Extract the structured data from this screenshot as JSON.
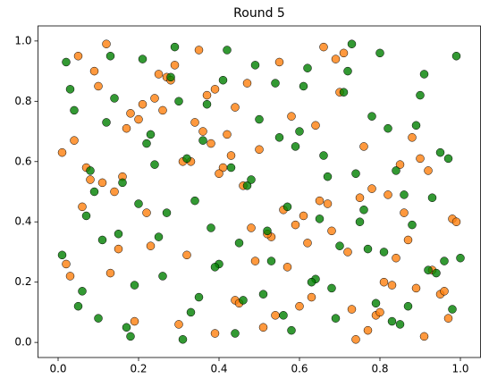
{
  "chart_data": {
    "type": "scatter",
    "title": "Round 5",
    "xlim": [
      -0.05,
      1.05
    ],
    "ylim": [
      -0.05,
      1.05
    ],
    "xticks": [
      {
        "value": 0,
        "label": "0.0"
      },
      0.2,
      0.4,
      0.6,
      0.8,
      {
        "value": 1,
        "label": "1.0"
      }
    ],
    "yticks": [
      {
        "value": 0,
        "label": "0.0"
      },
      0.2,
      0.4,
      0.6,
      0.8,
      {
        "value": 1,
        "label": "1.0"
      }
    ],
    "series": [
      {
        "color": "#ff7f0e",
        "x": [
          0.5,
          0.27,
          0.83,
          0.06,
          0.64,
          0.39,
          0.92,
          0.15,
          0.71,
          0.44,
          0.98,
          0.21,
          0.57,
          0.33,
          0.79,
          0.1,
          0.68,
          0.46,
          0.88,
          0.03,
          0.55,
          0.3,
          0.75,
          0.18,
          0.62,
          0.41,
          0.95,
          0.24,
          0.86,
          0.12,
          0.49,
          0.36,
          0.73,
          0.08,
          0.59,
          0.28,
          0.91,
          0.43,
          0.67,
          0.2,
          0.81,
          0.05,
          0.53,
          0.38,
          0.97,
          0.14,
          0.7,
          0.32,
          0.85,
          0.45,
          0.26,
          0.61,
          0.09,
          0.77,
          0.4,
          0.93,
          0.17,
          0.52,
          0.35,
          0.89,
          0.01,
          0.65,
          0.47,
          0.8,
          0.23,
          0.58,
          0.11,
          0.74,
          0.42,
          0.99,
          0.29,
          0.63,
          0.07,
          0.84,
          0.37,
          0.56,
          0.19,
          0.9,
          0.48,
          0.69,
          0.13,
          0.78,
          0.34,
          0.6,
          0.04,
          0.87,
          0.25,
          0.51,
          0.16,
          0.72,
          0.44,
          0.96,
          0.31,
          0.66,
          0.02,
          0.82,
          0.39,
          0.54,
          0.22,
          0.76
        ],
        "values": [
          0.64,
          0.88,
          0.19,
          0.45,
          0.72,
          0.03,
          0.57,
          0.31,
          0.96,
          0.14,
          0.41,
          0.79,
          0.25,
          0.6,
          0.09,
          0.85,
          0.37,
          0.52,
          0.68,
          0.22,
          0.93,
          0.06,
          0.48,
          0.76,
          0.33,
          0.58,
          0.16,
          0.81,
          0.43,
          0.99,
          0.27,
          0.7,
          0.11,
          0.54,
          0.39,
          0.87,
          0.02,
          0.62,
          0.46,
          0.74,
          0.2,
          0.95,
          0.35,
          0.66,
          0.08,
          0.5,
          0.83,
          0.29,
          0.59,
          0.13,
          0.77,
          0.42,
          0.9,
          0.04,
          0.56,
          0.24,
          0.71,
          0.36,
          0.97,
          0.18,
          0.63,
          0.47,
          0.86,
          0.1,
          0.32,
          0.75,
          0.53,
          0.01,
          0.69,
          0.4,
          0.92,
          0.15,
          0.58,
          0.28,
          0.82,
          0.44,
          0.07,
          0.61,
          0.38,
          0.94,
          0.23,
          0.51,
          0.73,
          0.12,
          0.67,
          0.34,
          0.89,
          0.05,
          0.55,
          0.3,
          0.78,
          0.17,
          0.6,
          0.98,
          0.26,
          0.49,
          0.84,
          0.09,
          0.43,
          0.65
        ]
      },
      {
        "color": "#008000",
        "x": [
          0.02,
          0.05,
          0.08,
          0.11,
          0.14,
          0.17,
          0.2,
          0.23,
          0.26,
          0.29,
          0.32,
          0.35,
          0.38,
          0.41,
          0.44,
          0.47,
          0.5,
          0.53,
          0.56,
          0.59,
          0.62,
          0.65,
          0.68,
          0.71,
          0.74,
          0.77,
          0.8,
          0.83,
          0.86,
          0.89,
          0.92,
          0.95,
          0.98,
          0.01,
          0.04,
          0.07,
          0.1,
          0.13,
          0.16,
          0.19,
          0.22,
          0.25,
          0.28,
          0.31,
          0.34,
          0.37,
          0.4,
          0.43,
          0.46,
          0.49,
          0.52,
          0.55,
          0.58,
          0.61,
          0.64,
          0.67,
          0.7,
          0.73,
          0.76,
          0.79,
          0.82,
          0.85,
          0.88,
          0.91,
          0.94,
          0.97,
          1.0,
          0.03,
          0.06,
          0.09,
          0.12,
          0.15,
          0.18,
          0.21,
          0.24,
          0.27,
          0.3,
          0.33,
          0.36,
          0.39,
          0.42,
          0.45,
          0.48,
          0.51,
          0.54,
          0.57,
          0.6,
          0.63,
          0.66,
          0.69,
          0.72,
          0.75,
          0.78,
          0.81,
          0.84,
          0.87,
          0.9,
          0.93,
          0.96,
          0.99
        ],
        "values": [
          0.93,
          0.12,
          0.57,
          0.34,
          0.81,
          0.05,
          0.46,
          0.69,
          0.22,
          0.98,
          0.61,
          0.15,
          0.38,
          0.87,
          0.03,
          0.52,
          0.74,
          0.27,
          0.09,
          0.65,
          0.91,
          0.41,
          0.18,
          0.83,
          0.56,
          0.31,
          0.96,
          0.07,
          0.49,
          0.72,
          0.24,
          0.63,
          0.11,
          0.29,
          0.77,
          0.42,
          0.08,
          0.95,
          0.53,
          0.19,
          0.66,
          0.35,
          0.88,
          0.01,
          0.47,
          0.79,
          0.26,
          0.58,
          0.14,
          0.92,
          0.37,
          0.68,
          0.04,
          0.85,
          0.21,
          0.55,
          0.32,
          0.99,
          0.44,
          0.13,
          0.71,
          0.06,
          0.39,
          0.89,
          0.23,
          0.61,
          0.28,
          0.84,
          0.17,
          0.5,
          0.73,
          0.36,
          0.02,
          0.94,
          0.59,
          0.43,
          0.8,
          0.1,
          0.67,
          0.25,
          0.97,
          0.33,
          0.54,
          0.16,
          0.86,
          0.45,
          0.7,
          0.2,
          0.62,
          0.08,
          0.9,
          0.4,
          0.75,
          0.3,
          0.57,
          0.12,
          0.82,
          0.48,
          0.27,
          0.95
        ]
      }
    ]
  }
}
